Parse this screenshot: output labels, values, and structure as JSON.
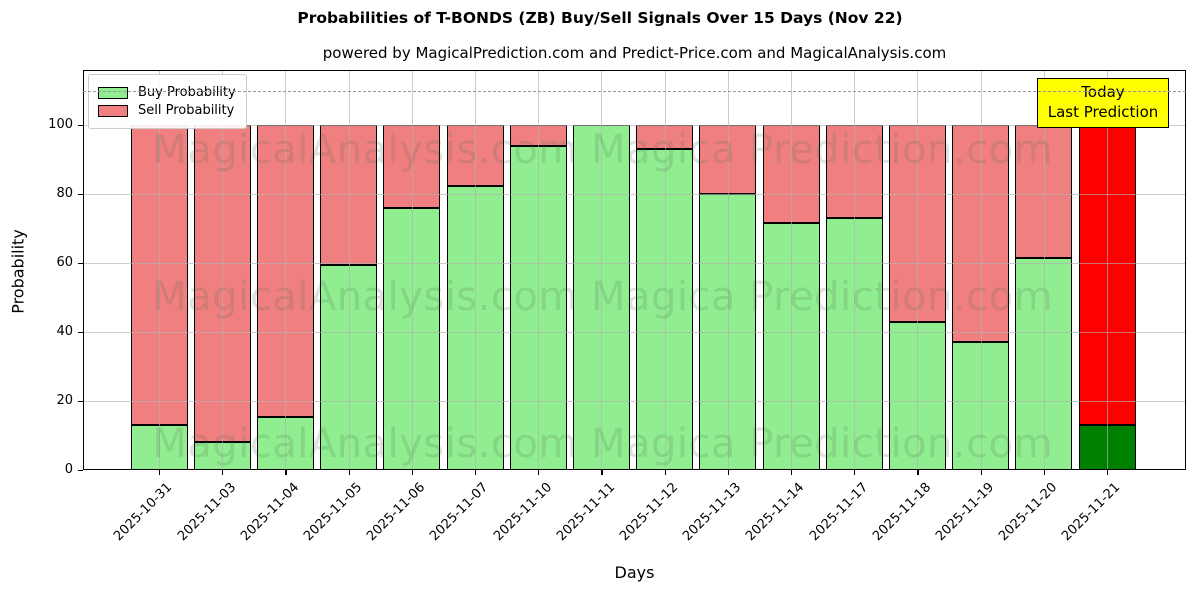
{
  "chart_data": {
    "type": "bar",
    "stacked": true,
    "title": "Probabilities of T-BONDS (ZB) Buy/Sell Signals Over 15 Days (Nov 22)",
    "subtitle": "powered by MagicalPrediction.com and Predict-Price.com and MagicalAnalysis.com",
    "xlabel": "Days",
    "ylabel": "Probability",
    "categories": [
      "2025-10-31",
      "2025-11-03",
      "2025-11-04",
      "2025-11-05",
      "2025-11-06",
      "2025-11-07",
      "2025-11-10",
      "2025-11-11",
      "2025-11-12",
      "2025-11-13",
      "2025-11-14",
      "2025-11-17",
      "2025-11-18",
      "2025-11-19",
      "2025-11-20",
      "2025-11-21"
    ],
    "series": [
      {
        "name": "Buy Probability",
        "color": "#90EE90",
        "values": [
          13,
          8,
          15.5,
          59.5,
          76,
          82.5,
          94,
          100,
          93,
          80,
          71.5,
          73,
          43,
          37,
          61.5,
          13
        ]
      },
      {
        "name": "Sell Probability",
        "color": "#F08080",
        "values": [
          87,
          92,
          84.5,
          40.5,
          24,
          17.5,
          6,
          0,
          7,
          20,
          28.5,
          27,
          57,
          63,
          38.5,
          87
        ]
      }
    ],
    "ylim": [
      0,
      116
    ],
    "yticks": [
      0,
      20,
      40,
      60,
      80,
      100
    ],
    "grid": true,
    "legend_position": "upper left",
    "dashed_line_y": 110,
    "today_annotation": {
      "lines": [
        "Today",
        "Last Prediction"
      ],
      "applies_to": "2025-11-21",
      "bg_color": "#FFFF00",
      "buy_color": "#008000",
      "sell_color": "#FF0000"
    },
    "watermark_left": "MagicalAnalysis.com",
    "watermark_right": "Magica Prediction.com",
    "colors": {
      "grid": "rgba(176,176,176,0.65)",
      "dashed_line": "#999999",
      "watermark": "rgba(80,100,80,0.18)"
    }
  }
}
